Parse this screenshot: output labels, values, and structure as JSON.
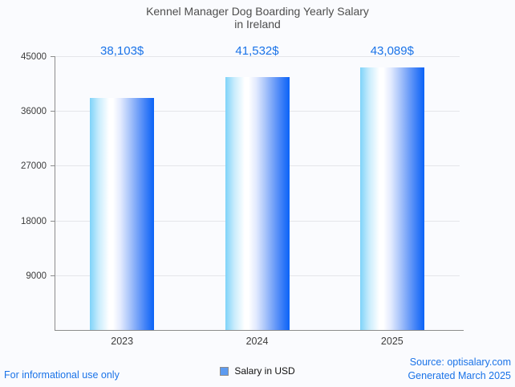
{
  "title": {
    "line1": "Kennel Manager Dog Boarding Yearly Salary",
    "line2": "in Ireland"
  },
  "chart_data": {
    "type": "bar",
    "title": "Kennel Manager Dog Boarding Yearly Salary in Ireland",
    "categories": [
      "2023",
      "2024",
      "2025"
    ],
    "values": [
      38103,
      41532,
      43089
    ],
    "value_labels": [
      "38,103$",
      "41,532$",
      "43,089$"
    ],
    "series_name": "Salary in USD",
    "y_ticks": [
      9000,
      18000,
      27000,
      36000,
      45000
    ],
    "ylim": [
      0,
      45000
    ],
    "xlabel": "",
    "ylabel": "",
    "grid": "horizontal",
    "legend_position": "bottom-center"
  },
  "legend": {
    "label": "Salary in USD"
  },
  "footer": {
    "disclaimer": "For informational use only",
    "source": "Source: optisalary.com",
    "generated": "Generated March 2025"
  },
  "colors": {
    "value_label_text": "#1a73e8",
    "footer_text": "#1a73e8",
    "bar_gradient_left": "#7ed3f9",
    "bar_gradient_mid": "#ffffff",
    "bar_gradient_right": "#0a63f7",
    "legend_swatch": "#5d9bf0",
    "axis_line": "#8c8c8c",
    "gridline": "#e4e5ea",
    "background": "#fafbfe",
    "title_text": "#4d4d4d"
  }
}
